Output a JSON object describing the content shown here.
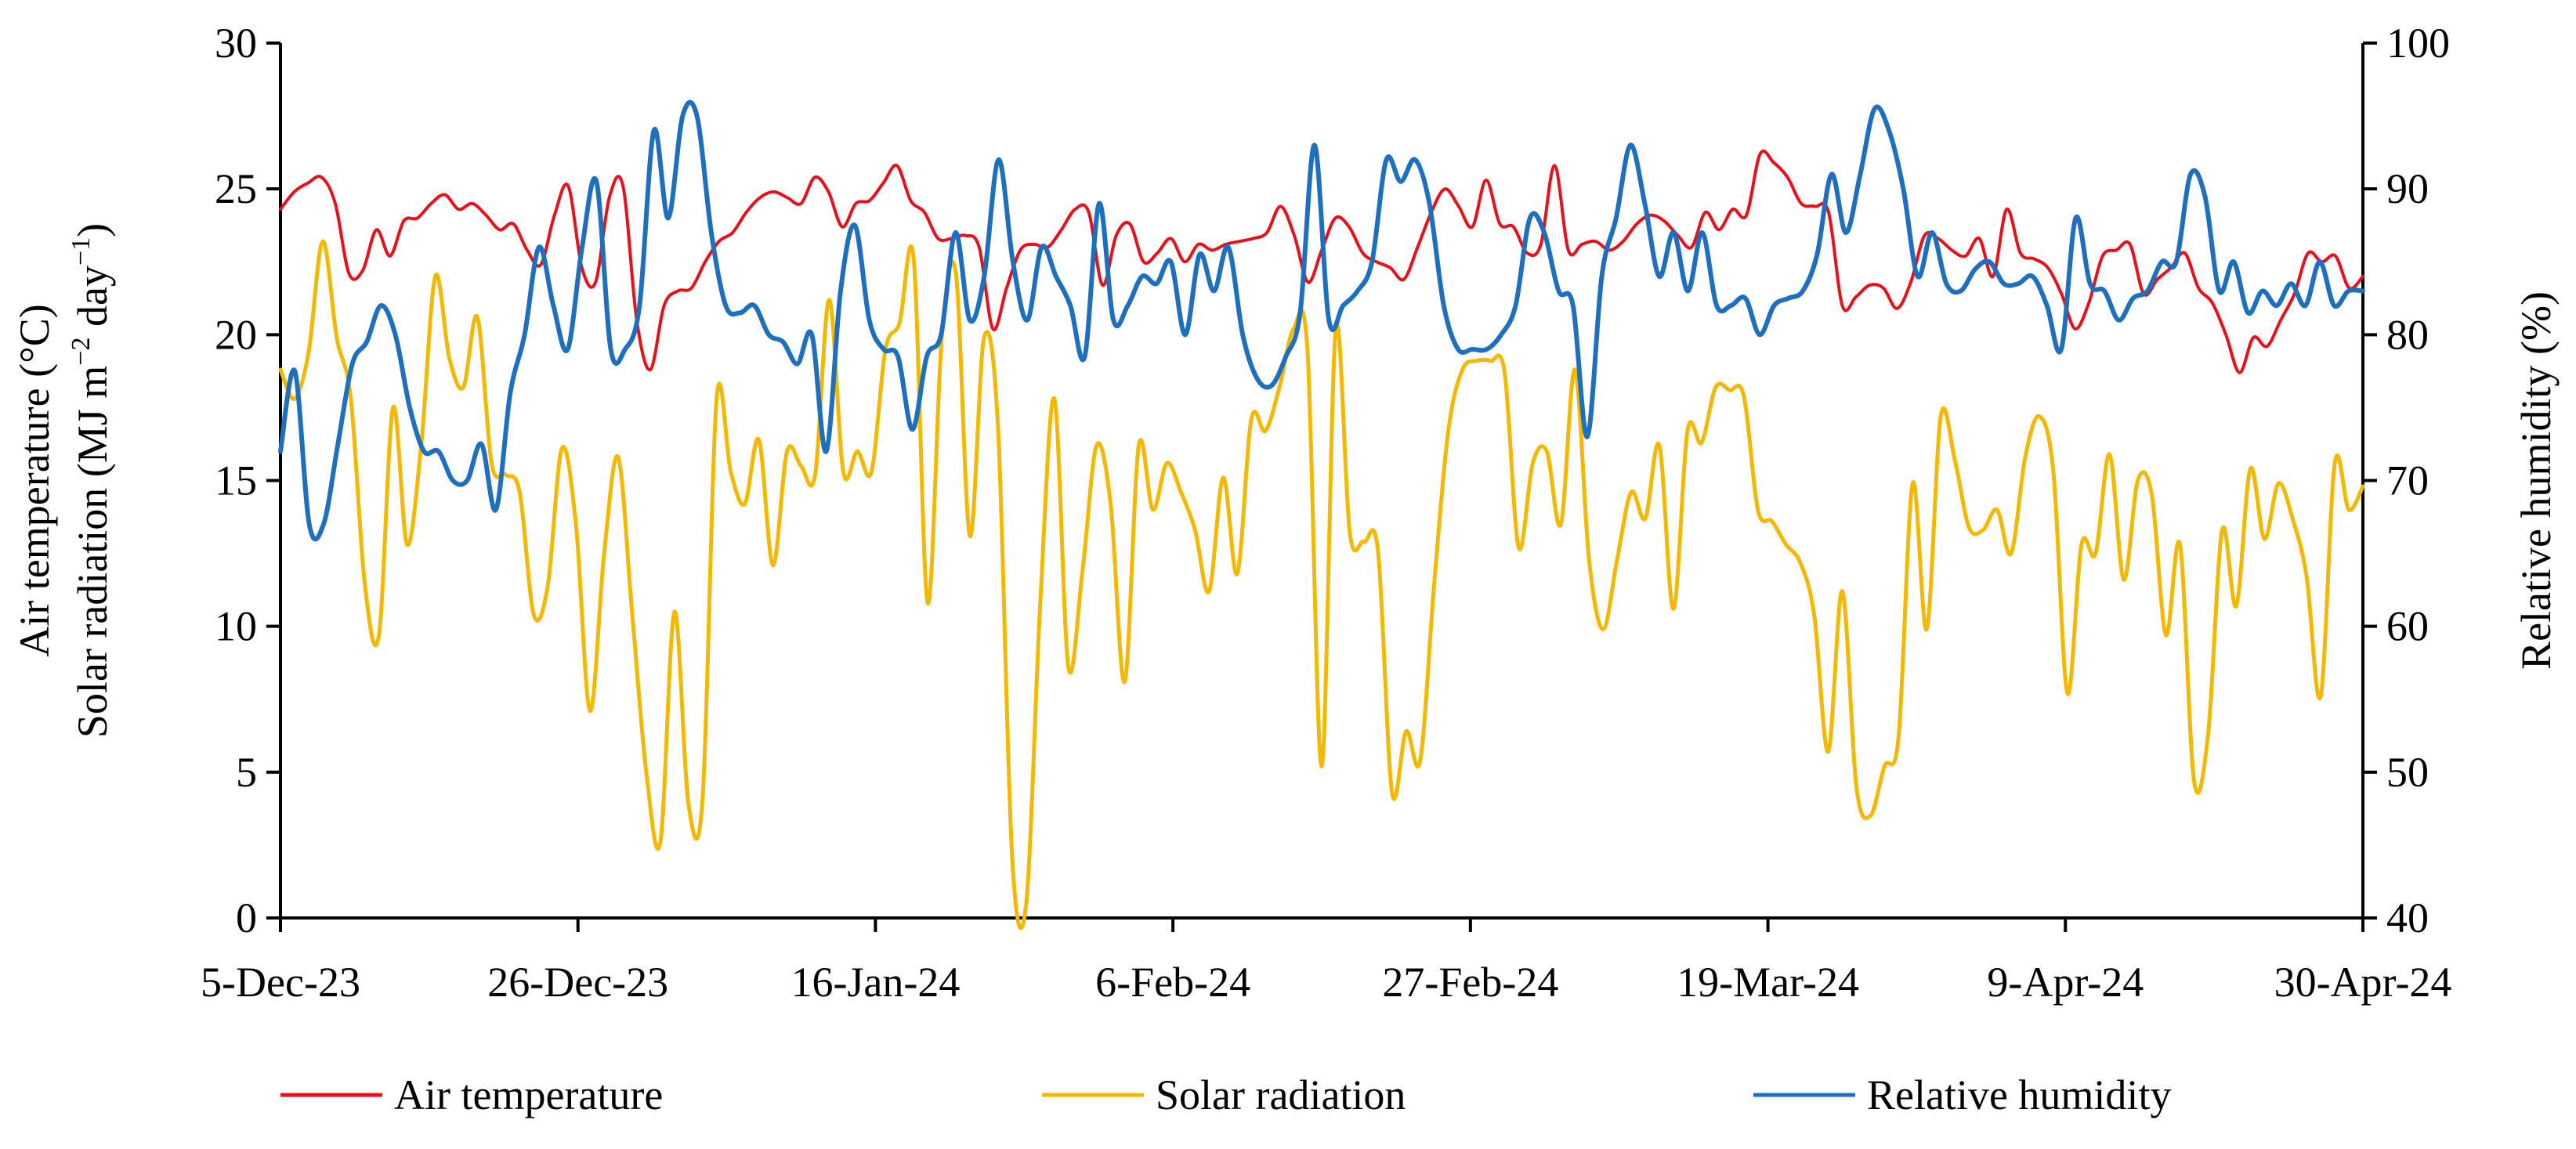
{
  "chart_data": {
    "type": "line",
    "title": "",
    "x_categories_shown": [
      "5-Dec-23",
      "26-Dec-23",
      "16-Jan-24",
      "6-Feb-24",
      "27-Feb-24",
      "19-Mar-24",
      "9-Apr-24",
      "30-Apr-24"
    ],
    "x_range_days": [
      0,
      147
    ],
    "x_tick_days": [
      0,
      21,
      42,
      63,
      84,
      105,
      126,
      147
    ],
    "y_left": {
      "label_line1": "Air temperature (°C)",
      "label_line2_prefix": "Solar radiation (MJ m",
      "label_line2_sup1": "−2",
      "label_line2_mid": " day",
      "label_line2_sup2": "−1",
      "label_line2_suffix": ")",
      "range": [
        0,
        30
      ],
      "ticks": [
        "0",
        "5",
        "10",
        "15",
        "20",
        "25",
        "30"
      ]
    },
    "y_right": {
      "label": "Relative humidity (%)",
      "range": [
        40,
        100
      ],
      "ticks": [
        "40",
        "50",
        "60",
        "70",
        "80",
        "90",
        "100"
      ]
    },
    "series": [
      {
        "name": "Air temperature",
        "axis": "left",
        "color": "#e8101a",
        "values": [
          24.3,
          24.9,
          25.2,
          25.4,
          24.5,
          22.1,
          22.2,
          23.6,
          22.7,
          23.9,
          24.0,
          24.5,
          24.8,
          24.3,
          24.5,
          24.1,
          23.6,
          23.8,
          22.9,
          22.4,
          24.1,
          25.1,
          22.3,
          21.8,
          24.7,
          25.1,
          20.5,
          18.8,
          21.0,
          21.5,
          21.6,
          22.5,
          23.2,
          23.5,
          24.2,
          24.7,
          24.9,
          24.7,
          24.5,
          25.4,
          24.9,
          23.7,
          24.5,
          24.6,
          25.2,
          25.8,
          24.6,
          24.2,
          23.3,
          23.3,
          23.4,
          23.0,
          20.2,
          21.6,
          22.9,
          23.1,
          23.0,
          23.6,
          24.3,
          24.2,
          21.7,
          23.4,
          23.8,
          22.5,
          22.8,
          23.3,
          22.5,
          23.1,
          22.9,
          23.1,
          23.2,
          23.3,
          23.5,
          24.4,
          23.4,
          21.8,
          22.9,
          24.0,
          23.7,
          22.8,
          22.5,
          22.3,
          21.9,
          23.0,
          24.2,
          25.0,
          24.4,
          23.7,
          25.3,
          23.8,
          23.7,
          22.8,
          23.1,
          25.8,
          22.9,
          23.1,
          23.2,
          22.9,
          23.2,
          23.8,
          24.1,
          23.9,
          23.4,
          23.0,
          24.2,
          23.6,
          24.3,
          24.1,
          26.2,
          25.9,
          25.4,
          24.5,
          24.4,
          24.2,
          21.0,
          21.3,
          21.7,
          21.6,
          20.9,
          21.8,
          23.4,
          23.3,
          22.9,
          22.7,
          23.3,
          22.0,
          24.3,
          22.8,
          22.6,
          22.3,
          21.4,
          20.2,
          21.1,
          22.7,
          22.9,
          23.1,
          21.4,
          21.9,
          22.3,
          22.8,
          21.6,
          21.1,
          20.0,
          18.7,
          19.9,
          19.6,
          20.5,
          21.4,
          22.8,
          22.5,
          22.7,
          21.6,
          22.0
        ]
      },
      {
        "name": "Solar radiation",
        "axis": "left",
        "color": "#f5b800",
        "values": [
          18.8,
          17.8,
          19.4,
          23.2,
          19.9,
          17.8,
          11.4,
          9.7,
          17.5,
          12.8,
          16.2,
          22.0,
          19.2,
          18.2,
          20.6,
          15.6,
          15.2,
          14.6,
          10.4,
          11.4,
          16.1,
          13.5,
          7.1,
          12.5,
          15.8,
          10.4,
          5.0,
          2.6,
          10.5,
          3.9,
          4.1,
          17.8,
          15.3,
          14.2,
          16.4,
          12.1,
          16.0,
          15.5,
          15.2,
          21.2,
          15.3,
          16.0,
          15.3,
          19.5,
          20.4,
          22.6,
          10.8,
          19.9,
          22.1,
          13.1,
          19.9,
          16.8,
          2.1,
          0.5,
          10.8,
          17.8,
          8.6,
          11.9,
          16.2,
          14.2,
          8.1,
          16.2,
          14.0,
          15.6,
          14.6,
          13.3,
          11.2,
          15.1,
          11.8,
          17.1,
          16.7,
          18.2,
          20.2,
          19.4,
          5.2,
          20.2,
          13.2,
          12.9,
          12.6,
          4.3,
          6.4,
          5.4,
          11.5,
          16.7,
          18.8,
          19.1,
          19.1,
          18.7,
          12.7,
          15.6,
          16.0,
          13.5,
          18.8,
          12.3,
          9.9,
          12.3,
          14.6,
          13.7,
          16.2,
          10.6,
          16.7,
          16.3,
          18.2,
          18.1,
          17.9,
          14.0,
          13.6,
          12.8,
          12.2,
          10.4,
          5.7,
          11.2,
          4.5,
          3.5,
          5.2,
          6.2,
          14.9,
          9.9,
          17.2,
          15.7,
          13.4,
          13.3,
          14.0,
          12.5,
          15.8,
          17.2,
          15.3,
          7.7,
          12.8,
          12.5,
          15.9,
          11.6,
          15.0,
          14.5,
          9.7,
          12.8,
          4.7,
          6.3,
          13.3,
          10.7,
          15.4,
          13.0,
          14.9,
          13.7,
          11.7,
          7.6,
          15.6,
          14.0,
          14.8
        ]
      },
      {
        "name": "Relative humidity",
        "axis": "right",
        "color": "#1f6fbf",
        "values": [
          72.0,
          77.5,
          67.0,
          67.0,
          72.5,
          78.0,
          79.5,
          82.0,
          80.0,
          75.0,
          72.0,
          72.0,
          70.0,
          70.0,
          72.5,
          68.0,
          76.0,
          80.0,
          86.0,
          82.0,
          79.0,
          86.0,
          90.5,
          79.0,
          79.0,
          82.0,
          94.0,
          88.0,
          95.0,
          95.0,
          87.0,
          82.0,
          81.5,
          82.0,
          80.0,
          79.5,
          78.0,
          80.0,
          72.0,
          83.0,
          87.5,
          81.0,
          79.0,
          78.5,
          73.5,
          78.5,
          80.0,
          87.0,
          81.0,
          84.0,
          92.0,
          85.0,
          81.0,
          86.0,
          84.0,
          82.0,
          78.5,
          89.0,
          81.0,
          82.0,
          84.0,
          83.5,
          85.0,
          80.0,
          85.5,
          83.0,
          86.0,
          80.0,
          77.0,
          76.5,
          78.5,
          81.5,
          93.0,
          81.0,
          82.0,
          83.0,
          85.0,
          92.0,
          90.5,
          92.0,
          89.0,
          82.0,
          79.0,
          79.0,
          79.0,
          80.0,
          82.0,
          88.0,
          87.0,
          83.0,
          82.0,
          73.0,
          84.0,
          88.0,
          93.0,
          89.0,
          84.0,
          87.0,
          83.0,
          87.0,
          82.0,
          82.0,
          82.5,
          80.0,
          82.0,
          82.5,
          83.0,
          85.5,
          91.0,
          87.0,
          91.0,
          95.5,
          94.0,
          90.0,
          84.0,
          87.0,
          83.5,
          83.0,
          84.5,
          85.0,
          83.5,
          83.5,
          84.0,
          82.0,
          79.0,
          88.0,
          83.5,
          83.0,
          81.0,
          82.5,
          83.0,
          85.0,
          85.0,
          91.0,
          89.5,
          83.0,
          85.0,
          81.5,
          83.0,
          82.0,
          83.5,
          82.0,
          85.0,
          82.0,
          83.0,
          83.0
        ]
      }
    ],
    "legend": {
      "placement": "bottom",
      "entries": [
        "Air temperature",
        "Solar radiation",
        "Relative humidity"
      ]
    },
    "grid": false
  }
}
